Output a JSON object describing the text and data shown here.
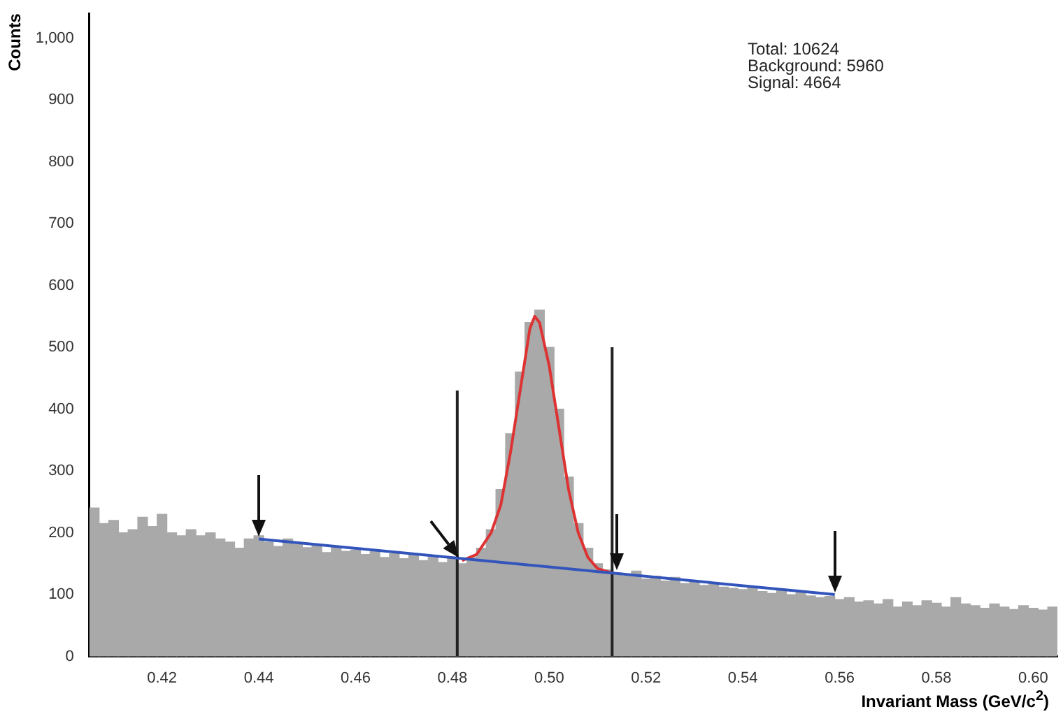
{
  "chart_data": {
    "type": "histogram",
    "xlabel": "Invariant Mass (GeV/c$^{2}$)",
    "ylabel": "Counts",
    "annotations": [
      "Total: 10624",
      "Background: 5960",
      "Signal: 4664"
    ],
    "bins": [
      0.405,
      0.407,
      0.409,
      0.411,
      0.413,
      0.415,
      0.417,
      0.419,
      0.421,
      0.423,
      0.425,
      0.427,
      0.429,
      0.431,
      0.433,
      0.435,
      0.437,
      0.439,
      0.441,
      0.443,
      0.445,
      0.447,
      0.449,
      0.451,
      0.453,
      0.455,
      0.457,
      0.459,
      0.461,
      0.463,
      0.465,
      0.467,
      0.469,
      0.471,
      0.473,
      0.475,
      0.477,
      0.479,
      0.481,
      0.483,
      0.485,
      0.487,
      0.489,
      0.491,
      0.493,
      0.495,
      0.497,
      0.499,
      0.501,
      0.503,
      0.505,
      0.507,
      0.509,
      0.511,
      0.513,
      0.515,
      0.517,
      0.519,
      0.521,
      0.523,
      0.525,
      0.527,
      0.529,
      0.531,
      0.533,
      0.535,
      0.537,
      0.539,
      0.541,
      0.543,
      0.545,
      0.547,
      0.549,
      0.551,
      0.553,
      0.555,
      0.557,
      0.559,
      0.561,
      0.563,
      0.565,
      0.567,
      0.569,
      0.571,
      0.573,
      0.575,
      0.577,
      0.579,
      0.581,
      0.583,
      0.585,
      0.587,
      0.589,
      0.591,
      0.593,
      0.595,
      0.597,
      0.599,
      0.601,
      0.603,
      0.605
    ],
    "values": [
      240,
      215,
      220,
      200,
      205,
      225,
      210,
      230,
      200,
      195,
      205,
      195,
      200,
      190,
      185,
      175,
      190,
      195,
      185,
      178,
      190,
      182,
      176,
      180,
      168,
      178,
      170,
      172,
      165,
      170,
      160,
      166,
      158,
      164,
      155,
      160,
      152,
      158,
      150,
      160,
      175,
      205,
      270,
      360,
      460,
      540,
      560,
      500,
      400,
      290,
      215,
      175,
      150,
      140,
      135,
      130,
      138,
      125,
      130,
      122,
      128,
      118,
      120,
      115,
      118,
      112,
      110,
      108,
      112,
      105,
      102,
      108,
      100,
      104,
      98,
      95,
      97,
      92,
      95,
      88,
      90,
      85,
      92,
      80,
      88,
      82,
      90,
      86,
      80,
      95,
      85,
      82,
      78,
      85,
      80,
      76,
      82,
      78,
      75,
      80
    ],
    "color": "#a9a9a9",
    "series": [
      {
        "type": "line",
        "x": [
          0.44,
          0.559
        ],
        "values": [
          190,
          100
        ],
        "color": "#3355bb"
      },
      {
        "type": "line",
        "x": [
          0.482,
          0.485,
          0.488,
          0.49,
          0.492,
          0.494,
          0.496,
          0.497,
          0.498,
          0.5,
          0.502,
          0.504,
          0.506,
          0.508,
          0.51,
          0.513
        ],
        "values": [
          155,
          165,
          200,
          245,
          330,
          430,
          530,
          550,
          540,
          470,
          370,
          270,
          200,
          160,
          142,
          135
        ],
        "color": "#dd3333"
      },
      {
        "type": "line",
        "x": [
          0.481,
          0.481
        ],
        "values": [
          0,
          430
        ],
        "color": "#222222"
      },
      {
        "type": "line",
        "x": [
          0.513,
          0.513
        ],
        "values": [
          0,
          500
        ],
        "color": "#222222"
      }
    ],
    "xlim": [
      0.405,
      0.605
    ],
    "xticks": [
      0.42,
      0.44,
      0.46,
      0.48,
      {
        "value": 0.5,
        "label": "0.50"
      },
      0.52,
      0.54,
      0.56,
      0.58,
      {
        "value": 0.6,
        "label": "0.60"
      }
    ],
    "ylim": [
      0,
      1040
    ],
    "yticks": [
      0,
      100,
      200,
      300,
      400,
      500,
      600,
      700,
      800,
      900,
      {
        "value": 1000,
        "label": "1,000"
      }
    ],
    "grid": false,
    "legend": false,
    "marker": "none",
    "line_style": "solid"
  }
}
